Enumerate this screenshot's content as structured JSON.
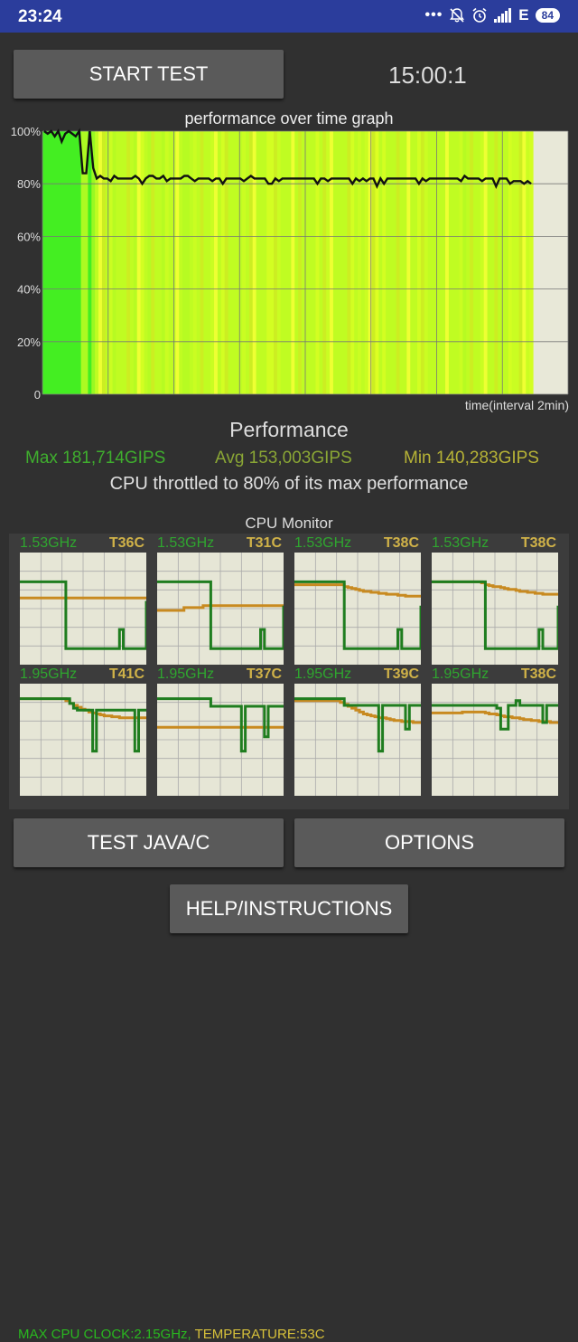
{
  "status_bar": {
    "time": "23:24",
    "dots": "•••",
    "icons": [
      "bell-off-icon",
      "alarm-icon",
      "signal-icon",
      "wifi-icon"
    ],
    "network_type": "E",
    "battery": "84"
  },
  "controls": {
    "start_label": "START TEST",
    "timer": "15:00:1",
    "test_label": "TEST JAVA/C",
    "options_label": "OPTIONS",
    "help_label": "HELP/INSTRUCTIONS"
  },
  "graph": {
    "title": "performance over time graph",
    "time_label": "time(interval 2min)",
    "y_ticks": [
      "100%",
      "80%",
      "60%",
      "40%",
      "20%",
      "0"
    ],
    "colors": {
      "background": "#e8e8d8",
      "line": "#111111",
      "green": "#44ee22",
      "yellow": "#ddff22"
    }
  },
  "chart_data": {
    "type": "line",
    "ylim": [
      0,
      100
    ],
    "performance_percent": [
      100,
      99,
      100,
      98,
      100,
      96,
      99,
      100,
      99,
      98,
      100,
      84,
      84,
      100,
      86,
      82,
      83,
      82,
      82,
      81,
      83,
      82,
      82,
      82,
      82,
      82,
      83,
      82,
      80,
      82,
      83,
      83,
      82,
      82,
      83,
      81,
      82,
      82,
      82,
      82,
      83,
      83,
      82,
      81,
      82,
      82,
      82,
      82,
      81,
      82,
      82,
      80,
      82,
      82,
      82,
      82,
      82,
      81,
      82,
      83,
      82,
      82,
      82,
      82,
      80,
      80,
      82,
      81,
      82,
      82,
      82,
      82,
      82,
      82,
      82,
      82,
      82,
      82,
      80,
      82,
      82,
      81,
      82,
      82,
      82,
      82,
      82,
      82,
      80,
      82,
      81,
      82,
      81,
      82,
      82,
      79,
      82,
      80,
      82,
      82,
      82,
      82,
      82,
      82,
      82,
      82,
      82,
      80,
      82,
      81,
      82,
      82,
      82,
      82,
      82,
      82,
      82,
      82,
      82,
      81,
      83,
      82,
      82,
      82,
      82,
      81,
      82,
      82,
      82,
      79,
      82,
      82,
      82,
      80,
      81,
      81,
      81,
      80,
      81,
      80
    ]
  },
  "performance": {
    "heading": "Performance",
    "max": "Max 181,714GIPS",
    "avg": "Avg 153,003GIPS",
    "min": "Min 140,283GIPS",
    "throttle": "CPU throttled to 80% of its max performance"
  },
  "cpu_monitor": {
    "title": "CPU Monitor",
    "cores": [
      {
        "freq": "1.53GHz",
        "temp": "T36C",
        "load": [
          0.85,
          0.85,
          0.85,
          0.85,
          0.85,
          0.85,
          0.85,
          0.85,
          0.85,
          0.85,
          0.85,
          0.85,
          0.15,
          0.15,
          0.15,
          0.15,
          0.15,
          0.15,
          0.15,
          0.15,
          0.15,
          0.15,
          0.15,
          0.15,
          0.15,
          0.15,
          0.35,
          0.15,
          0.15,
          0.15,
          0.15,
          0.15,
          0.15,
          0.65
        ],
        "temperature": [
          0.68,
          0.68,
          0.68,
          0.68,
          0.68,
          0.68,
          0.68,
          0.68,
          0.68,
          0.68,
          0.68,
          0.68,
          0.68,
          0.68,
          0.68,
          0.68,
          0.68,
          0.68,
          0.68,
          0.68,
          0.68,
          0.68,
          0.68,
          0.68,
          0.68,
          0.68,
          0.68,
          0.68,
          0.68,
          0.68,
          0.68,
          0.68,
          0.68,
          0.68
        ]
      },
      {
        "freq": "1.53GHz",
        "temp": "T31C",
        "load": [
          0.85,
          0.85,
          0.85,
          0.85,
          0.85,
          0.85,
          0.85,
          0.85,
          0.85,
          0.85,
          0.85,
          0.85,
          0.85,
          0.85,
          0.15,
          0.15,
          0.15,
          0.15,
          0.15,
          0.15,
          0.15,
          0.15,
          0.15,
          0.15,
          0.15,
          0.15,
          0.15,
          0.35,
          0.15,
          0.15,
          0.15,
          0.15,
          0.15,
          0.6
        ],
        "temperature": [
          0.55,
          0.55,
          0.55,
          0.55,
          0.55,
          0.55,
          0.55,
          0.58,
          0.58,
          0.58,
          0.58,
          0.58,
          0.6,
          0.6,
          0.6,
          0.6,
          0.6,
          0.6,
          0.6,
          0.6,
          0.6,
          0.6,
          0.6,
          0.6,
          0.6,
          0.6,
          0.6,
          0.6,
          0.6,
          0.6,
          0.6,
          0.6,
          0.6,
          0.6
        ]
      },
      {
        "freq": "1.53GHz",
        "temp": "T38C",
        "load": [
          0.85,
          0.85,
          0.85,
          0.85,
          0.85,
          0.85,
          0.85,
          0.85,
          0.85,
          0.85,
          0.85,
          0.85,
          0.85,
          0.15,
          0.15,
          0.15,
          0.15,
          0.15,
          0.15,
          0.15,
          0.15,
          0.15,
          0.15,
          0.15,
          0.15,
          0.15,
          0.15,
          0.35,
          0.15,
          0.15,
          0.15,
          0.15,
          0.15,
          0.6
        ],
        "temperature": [
          0.82,
          0.82,
          0.82,
          0.82,
          0.82,
          0.82,
          0.82,
          0.82,
          0.82,
          0.82,
          0.82,
          0.82,
          0.82,
          0.8,
          0.79,
          0.78,
          0.77,
          0.76,
          0.75,
          0.75,
          0.74,
          0.74,
          0.73,
          0.73,
          0.72,
          0.72,
          0.72,
          0.71,
          0.71,
          0.7,
          0.7,
          0.7,
          0.7,
          0.7
        ]
      },
      {
        "freq": "1.53GHz",
        "temp": "T38C",
        "load": [
          0.85,
          0.85,
          0.85,
          0.85,
          0.85,
          0.85,
          0.85,
          0.85,
          0.85,
          0.85,
          0.85,
          0.85,
          0.85,
          0.85,
          0.15,
          0.15,
          0.15,
          0.15,
          0.15,
          0.15,
          0.15,
          0.15,
          0.15,
          0.15,
          0.15,
          0.15,
          0.15,
          0.15,
          0.35,
          0.15,
          0.15,
          0.15,
          0.15,
          0.6
        ],
        "temperature": [
          0.85,
          0.85,
          0.85,
          0.85,
          0.85,
          0.85,
          0.85,
          0.85,
          0.85,
          0.85,
          0.85,
          0.85,
          0.85,
          0.84,
          0.82,
          0.81,
          0.8,
          0.8,
          0.79,
          0.78,
          0.77,
          0.77,
          0.76,
          0.75,
          0.75,
          0.74,
          0.74,
          0.73,
          0.73,
          0.72,
          0.72,
          0.72,
          0.72,
          0.71
        ]
      },
      {
        "freq": "1.95GHz",
        "temp": "T41C",
        "load": [
          1.0,
          1.0,
          1.0,
          1.0,
          1.0,
          1.0,
          1.0,
          1.0,
          1.0,
          1.0,
          1.0,
          1.0,
          1.0,
          0.95,
          0.9,
          0.88,
          0.88,
          0.88,
          0.88,
          0.45,
          0.88,
          0.88,
          0.88,
          0.88,
          0.88,
          0.88,
          0.88,
          0.88,
          0.88,
          0.88,
          0.45,
          0.88,
          0.88,
          0.88
        ],
        "temperature": [
          1.0,
          1.0,
          1.0,
          1.0,
          1.0,
          1.0,
          1.0,
          1.0,
          1.0,
          1.0,
          1.0,
          1.0,
          0.98,
          0.95,
          0.93,
          0.91,
          0.89,
          0.88,
          0.86,
          0.85,
          0.84,
          0.83,
          0.82,
          0.82,
          0.81,
          0.81,
          0.8,
          0.8,
          0.8,
          0.8,
          0.8,
          0.8,
          0.8,
          0.8
        ]
      },
      {
        "freq": "1.95GHz",
        "temp": "T37C",
        "load": [
          1.0,
          1.0,
          1.0,
          1.0,
          1.0,
          1.0,
          1.0,
          1.0,
          1.0,
          1.0,
          1.0,
          1.0,
          1.0,
          1.0,
          0.92,
          0.92,
          0.92,
          0.92,
          0.92,
          0.92,
          0.92,
          0.92,
          0.45,
          0.92,
          0.92,
          0.92,
          0.92,
          0.92,
          0.6,
          0.92,
          0.92,
          0.92,
          0.92,
          0.92
        ],
        "temperature": [
          0.7,
          0.7,
          0.7,
          0.7,
          0.7,
          0.7,
          0.7,
          0.7,
          0.7,
          0.7,
          0.7,
          0.7,
          0.7,
          0.7,
          0.7,
          0.7,
          0.7,
          0.7,
          0.7,
          0.7,
          0.7,
          0.7,
          0.7,
          0.7,
          0.7,
          0.7,
          0.7,
          0.7,
          0.7,
          0.7,
          0.7,
          0.7,
          0.7,
          0.7
        ]
      },
      {
        "freq": "1.95GHz",
        "temp": "T39C",
        "load": [
          1.0,
          1.0,
          1.0,
          1.0,
          1.0,
          1.0,
          1.0,
          1.0,
          1.0,
          1.0,
          1.0,
          1.0,
          1.0,
          0.93,
          0.93,
          0.93,
          0.93,
          0.93,
          0.93,
          0.93,
          0.93,
          0.93,
          0.45,
          0.93,
          0.93,
          0.93,
          0.93,
          0.93,
          0.93,
          0.68,
          0.93,
          0.93,
          0.93,
          0.93
        ],
        "temperature": [
          0.98,
          0.98,
          0.98,
          0.98,
          0.98,
          0.98,
          0.98,
          0.98,
          0.98,
          0.98,
          0.98,
          0.98,
          0.96,
          0.94,
          0.92,
          0.9,
          0.88,
          0.86,
          0.84,
          0.83,
          0.82,
          0.81,
          0.8,
          0.8,
          0.79,
          0.78,
          0.77,
          0.77,
          0.76,
          0.76,
          0.76,
          0.75,
          0.75,
          0.75
        ]
      },
      {
        "freq": "1.95GHz",
        "temp": "T38C",
        "load": [
          0.93,
          0.93,
          0.93,
          0.93,
          0.93,
          0.93,
          0.93,
          0.93,
          0.93,
          0.93,
          0.93,
          0.93,
          0.93,
          0.93,
          0.93,
          0.93,
          0.93,
          0.9,
          0.68,
          0.68,
          0.93,
          0.93,
          0.98,
          0.93,
          0.93,
          0.93,
          0.93,
          0.93,
          0.93,
          0.75,
          0.93,
          0.93,
          0.93,
          0.93
        ],
        "temperature": [
          0.85,
          0.85,
          0.85,
          0.85,
          0.85,
          0.85,
          0.85,
          0.85,
          0.86,
          0.86,
          0.86,
          0.86,
          0.86,
          0.86,
          0.85,
          0.84,
          0.84,
          0.83,
          0.82,
          0.81,
          0.81,
          0.8,
          0.8,
          0.79,
          0.78,
          0.78,
          0.77,
          0.77,
          0.76,
          0.76,
          0.76,
          0.75,
          0.75,
          0.74
        ]
      }
    ],
    "footer_clock": "MAX CPU CLOCK:2.15GHz,",
    "footer_temp": "TEMPERATURE:53C"
  }
}
